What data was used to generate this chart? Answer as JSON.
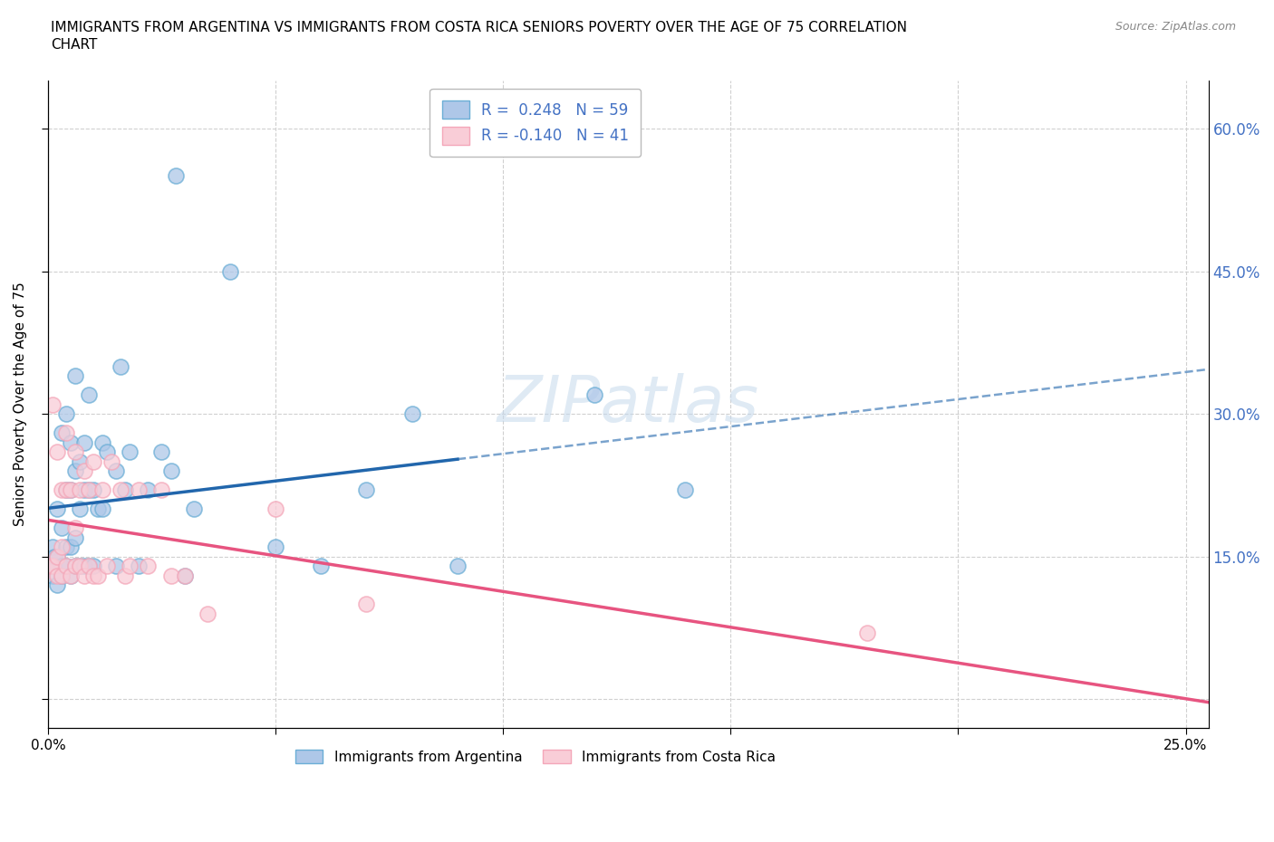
{
  "title_line1": "IMMIGRANTS FROM ARGENTINA VS IMMIGRANTS FROM COSTA RICA SENIORS POVERTY OVER THE AGE OF 75 CORRELATION",
  "title_line2": "CHART",
  "source": "Source: ZipAtlas.com",
  "ylabel": "Seniors Poverty Over the Age of 75",
  "xlim": [
    0.0,
    0.255
  ],
  "ylim": [
    -0.03,
    0.65
  ],
  "argentina_color": "#6baed6",
  "argentina_color_fill": "#aec7e8",
  "costa_rica_color": "#f4a7b9",
  "costa_rica_color_fill": "#f9cdd7",
  "trend_argentina_color": "#2166ac",
  "trend_costa_rica_color": "#e75480",
  "right_axis_color": "#4472c4",
  "legend_R_argentina": "R =  0.248",
  "legend_N_argentina": "N = 59",
  "legend_R_costa_rica": "R = -0.140",
  "legend_N_costa_rica": "N = 41",
  "arg_x": [
    0.0005,
    0.001,
    0.001,
    0.0015,
    0.0015,
    0.002,
    0.002,
    0.002,
    0.003,
    0.003,
    0.003,
    0.003,
    0.004,
    0.004,
    0.004,
    0.004,
    0.005,
    0.005,
    0.005,
    0.005,
    0.006,
    0.006,
    0.006,
    0.006,
    0.007,
    0.007,
    0.007,
    0.008,
    0.008,
    0.008,
    0.009,
    0.009,
    0.009,
    0.01,
    0.01,
    0.011,
    0.012,
    0.012,
    0.013,
    0.015,
    0.015,
    0.016,
    0.017,
    0.018,
    0.02,
    0.022,
    0.025,
    0.027,
    0.028,
    0.03,
    0.032,
    0.04,
    0.05,
    0.06,
    0.07,
    0.08,
    0.09,
    0.12,
    0.14
  ],
  "arg_y": [
    0.14,
    0.13,
    0.16,
    0.14,
    0.15,
    0.12,
    0.15,
    0.2,
    0.13,
    0.14,
    0.18,
    0.28,
    0.14,
    0.16,
    0.22,
    0.3,
    0.13,
    0.16,
    0.22,
    0.27,
    0.14,
    0.17,
    0.24,
    0.34,
    0.14,
    0.2,
    0.25,
    0.14,
    0.22,
    0.27,
    0.14,
    0.22,
    0.32,
    0.14,
    0.22,
    0.2,
    0.2,
    0.27,
    0.26,
    0.14,
    0.24,
    0.35,
    0.22,
    0.26,
    0.14,
    0.22,
    0.26,
    0.24,
    0.55,
    0.13,
    0.2,
    0.45,
    0.16,
    0.14,
    0.22,
    0.3,
    0.14,
    0.32,
    0.22
  ],
  "cr_x": [
    0.0005,
    0.001,
    0.001,
    0.002,
    0.002,
    0.002,
    0.003,
    0.003,
    0.003,
    0.004,
    0.004,
    0.004,
    0.005,
    0.005,
    0.006,
    0.006,
    0.006,
    0.007,
    0.007,
    0.008,
    0.008,
    0.009,
    0.009,
    0.01,
    0.01,
    0.011,
    0.012,
    0.013,
    0.014,
    0.016,
    0.017,
    0.018,
    0.02,
    0.022,
    0.025,
    0.027,
    0.03,
    0.035,
    0.05,
    0.07,
    0.18
  ],
  "cr_y": [
    0.14,
    0.14,
    0.31,
    0.13,
    0.15,
    0.26,
    0.13,
    0.16,
    0.22,
    0.14,
    0.22,
    0.28,
    0.13,
    0.22,
    0.14,
    0.18,
    0.26,
    0.14,
    0.22,
    0.13,
    0.24,
    0.14,
    0.22,
    0.13,
    0.25,
    0.13,
    0.22,
    0.14,
    0.25,
    0.22,
    0.13,
    0.14,
    0.22,
    0.14,
    0.22,
    0.13,
    0.13,
    0.09,
    0.2,
    0.1,
    0.07
  ]
}
